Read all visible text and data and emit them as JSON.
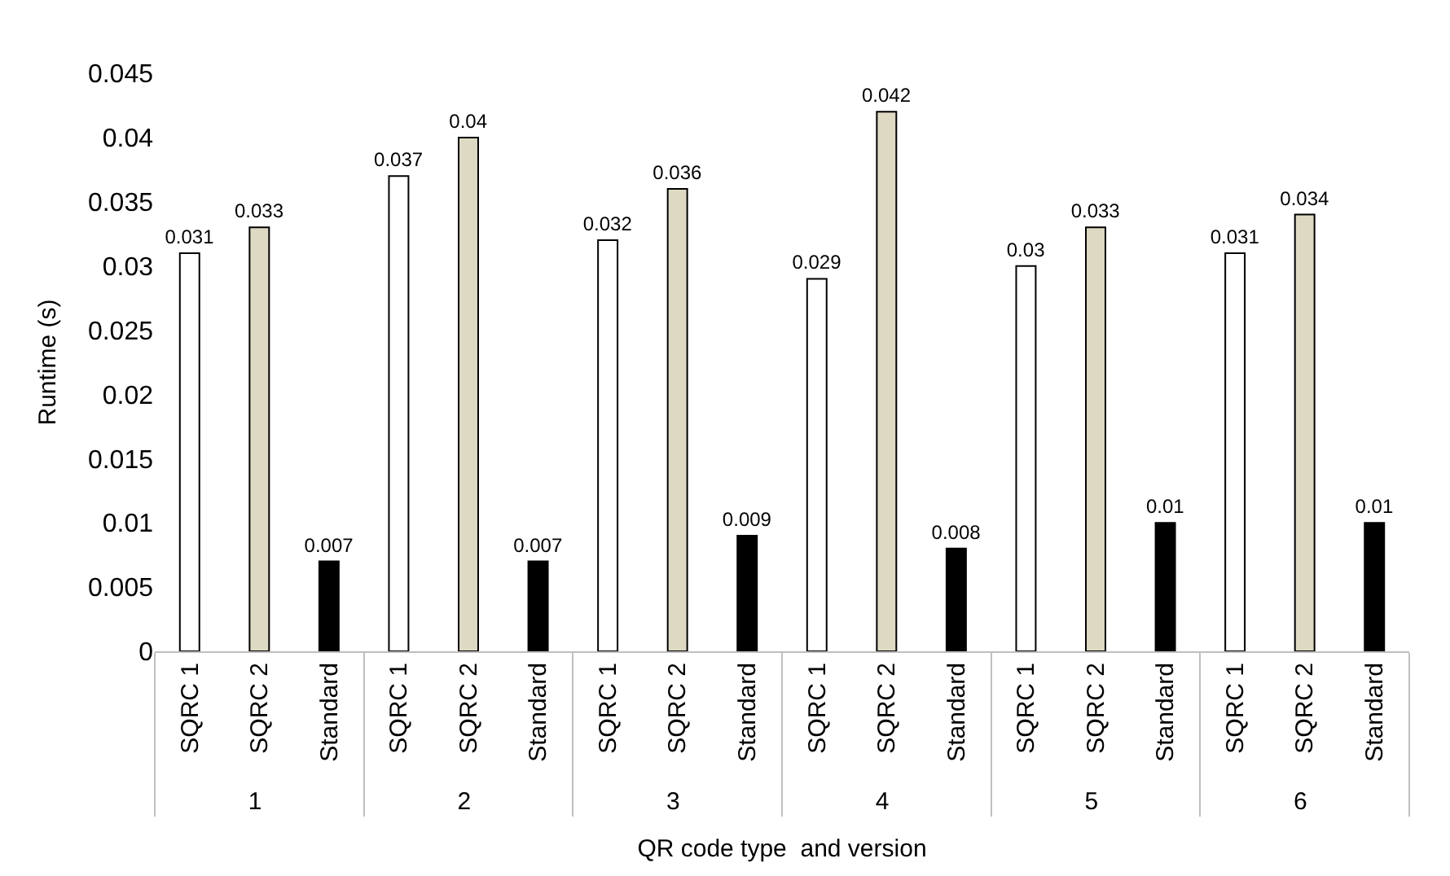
{
  "chart_data": {
    "type": "bar",
    "xlabel": "QR code type  and version",
    "ylabel": "Runtime (s)",
    "categories": [
      "SQRC 1",
      "SQRC 2",
      "Standard",
      "SQRC 1",
      "SQRC 2",
      "Standard",
      "SQRC 1",
      "SQRC 2",
      "Standard",
      "SQRC 1",
      "SQRC 2",
      "Standard",
      "SQRC 1",
      "SQRC 2",
      "Standard",
      "SQRC 1",
      "SQRC 2",
      "Standard"
    ],
    "annotations": [
      "1",
      "2",
      "3",
      "4",
      "5",
      "6"
    ],
    "values": [
      0.031,
      0.033,
      0.007,
      0.037,
      0.04,
      0.007,
      0.032,
      0.036,
      0.009,
      0.029,
      0.042,
      0.008,
      0.03,
      0.033,
      0.01,
      0.031,
      0.034,
      0.01
    ],
    "colors": [
      "#ffffff",
      "#ddd9c3",
      "#000000",
      "#ffffff",
      "#ddd9c3",
      "#000000",
      "#ffffff",
      "#ddd9c3",
      "#000000",
      "#ffffff",
      "#ddd9c3",
      "#000000",
      "#ffffff",
      "#ddd9c3",
      "#000000",
      "#ffffff",
      "#ddd9c3",
      "#000000"
    ],
    "ylim": [
      0,
      0.045
    ],
    "yticks": [
      0,
      0.005,
      0.01,
      0.015,
      0.02,
      0.025,
      0.03,
      0.035,
      0.04,
      0.045
    ],
    "data_labels": true,
    "legend": false
  }
}
